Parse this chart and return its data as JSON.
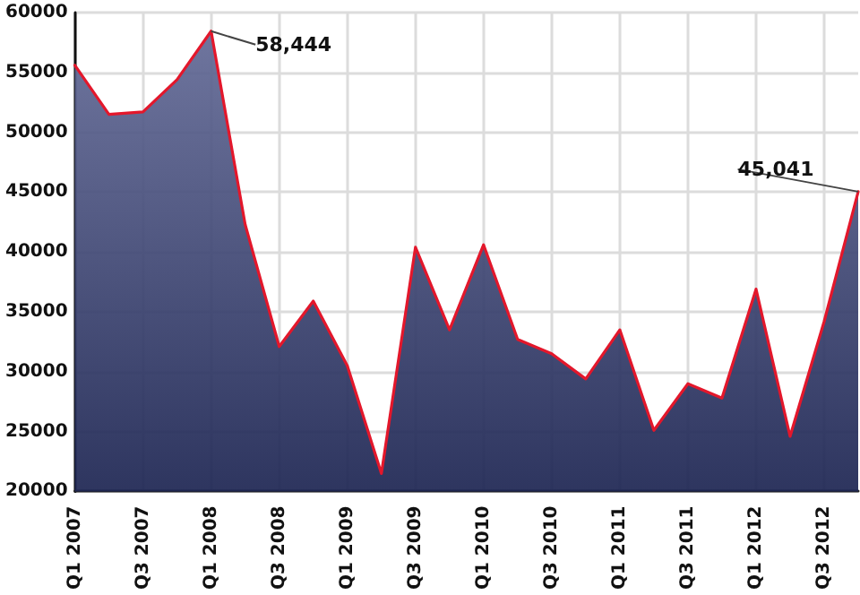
{
  "chart_data": {
    "type": "area",
    "categories": [
      "Q1 2007",
      null,
      "Q3 2007",
      null,
      "Q1 2008",
      null,
      "Q3 2008",
      null,
      "Q1 2009",
      null,
      "Q3 2009",
      null,
      "Q1 2010",
      null,
      "Q3 2010",
      null,
      "Q1 2011",
      null,
      "Q3 2011",
      null,
      "Q1 2012",
      null,
      "Q3 2012",
      null
    ],
    "values": [
      55600,
      51500,
      51700,
      54400,
      58444,
      42300,
      32100,
      35900,
      30500,
      21500,
      40400,
      33500,
      40600,
      32700,
      31500,
      29400,
      33500,
      25100,
      29000,
      27800,
      36900,
      24600,
      34200,
      45041
    ],
    "value_labels": [
      null,
      null,
      null,
      null,
      "58,444",
      null,
      null,
      null,
      null,
      null,
      null,
      null,
      null,
      null,
      null,
      null,
      null,
      null,
      null,
      null,
      null,
      null,
      null,
      "45,041"
    ],
    "color": "#28326e",
    "ylim": [
      20000,
      60000
    ],
    "yticks": [
      20000,
      25000,
      30000,
      35000,
      40000,
      45000,
      50000,
      55000,
      60000
    ],
    "grid": true
  }
}
